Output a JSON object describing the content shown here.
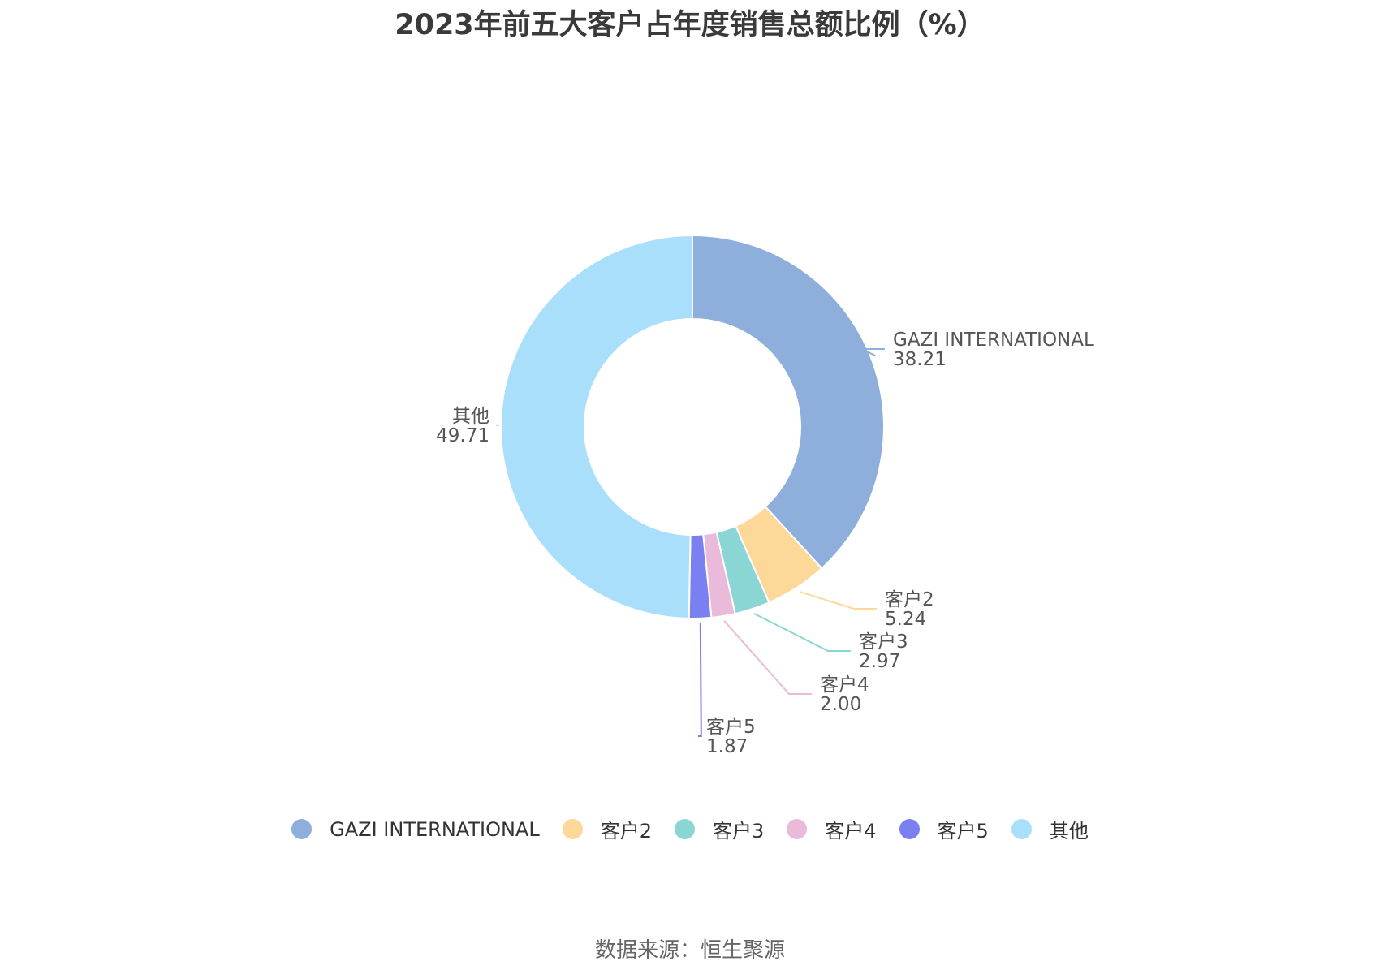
{
  "chart_data": {
    "type": "pie",
    "title": "2023年前五大客户占年度销售总额比例（%）",
    "source": "数据来源：恒生聚源",
    "slices": [
      {
        "label": "GAZI INTERNATIONAL",
        "value": 38.21,
        "value_text": "38.21",
        "color": "#8eaedb"
      },
      {
        "label": "客户2",
        "value": 5.24,
        "value_text": "5.24",
        "color": "#fdd899"
      },
      {
        "label": "客户3",
        "value": 2.97,
        "value_text": "2.97",
        "color": "#89d6d4"
      },
      {
        "label": "客户4",
        "value": 2.0,
        "value_text": "2.00",
        "color": "#e9bada"
      },
      {
        "label": "客户5",
        "value": 1.87,
        "value_text": "1.87",
        "color": "#7a80f1"
      },
      {
        "label": "其他",
        "value": 49.71,
        "value_text": "49.71",
        "color": "#a9dffa"
      }
    ],
    "legend_position": "bottom"
  }
}
